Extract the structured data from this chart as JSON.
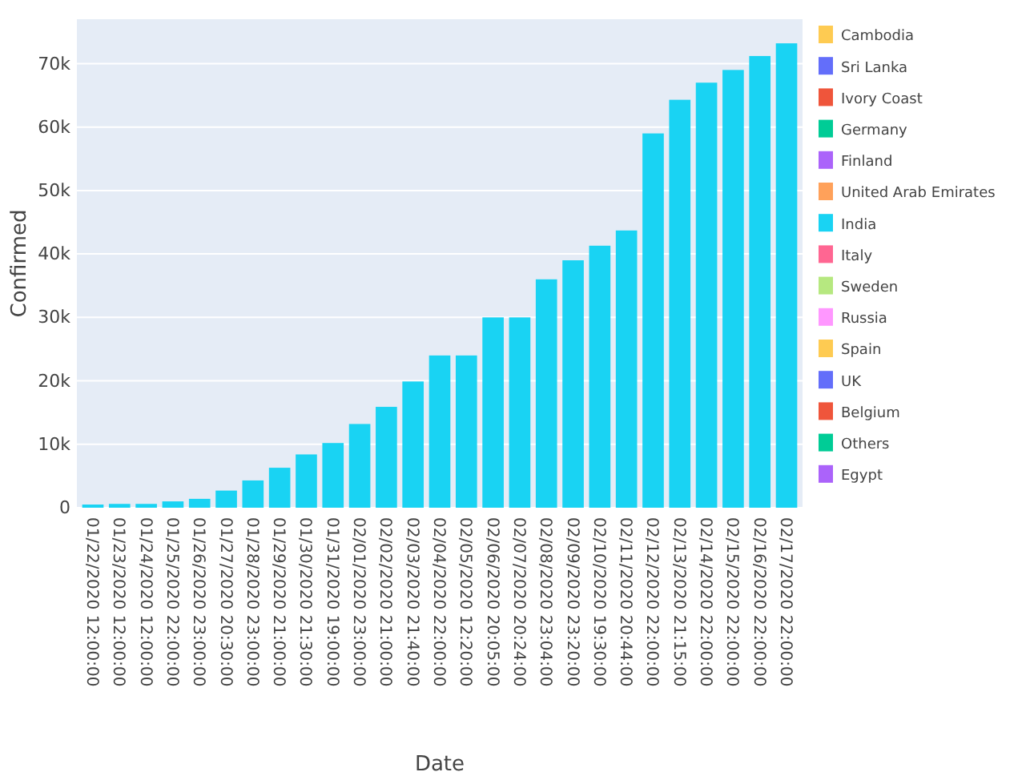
{
  "chart_data": {
    "type": "bar",
    "xlabel": "Date",
    "ylabel": "Confirmed",
    "categories": [
      "01/22/2020 12:00:00",
      "01/23/2020 12:00:00",
      "01/24/2020 12:00:00",
      "01/25/2020 22:00:00",
      "01/26/2020 23:00:00",
      "01/27/2020 20:30:00",
      "01/28/2020 23:00:00",
      "01/29/2020 21:00:00",
      "01/30/2020 21:30:00",
      "01/31/2020 19:00:00",
      "02/01/2020 23:00:00",
      "02/02/2020 21:00:00",
      "02/03/2020 21:40:00",
      "02/04/2020 22:00:00",
      "02/05/2020 12:20:00",
      "02/06/2020 20:05:00",
      "02/07/2020 20:24:00",
      "02/08/2020 23:04:00",
      "02/09/2020 23:20:00",
      "02/10/2020 19:30:00",
      "02/11/2020 20:44:00",
      "02/12/2020 22:00:00",
      "02/13/2020 21:15:00",
      "02/14/2020 22:00:00",
      "02/15/2020 22:00:00",
      "02/16/2020 22:00:00",
      "02/17/2020 22:00:00"
    ],
    "series": [
      {
        "color": "#19d3f3",
        "values": [
          500,
          600,
          600,
          1000,
          1400,
          2700,
          4300,
          6300,
          8400,
          10200,
          13200,
          15900,
          19900,
          24000,
          24000,
          30000,
          30000,
          36000,
          39000,
          41300,
          43700,
          59000,
          64300,
          67000,
          69000,
          71200,
          73200
        ]
      },
      {
        "name": "Cambodia",
        "color": "#fecb52",
        "values": [
          null,
          null,
          null,
          null,
          null,
          null,
          null,
          null,
          null,
          null,
          null,
          null,
          null,
          null,
          null,
          null,
          null,
          null,
          null,
          null,
          null,
          null,
          null,
          null,
          null,
          null,
          null
        ]
      },
      {
        "name": "Sri Lanka",
        "color": "#636efa",
        "values": [
          null,
          null,
          null,
          null,
          null,
          null,
          null,
          null,
          null,
          null,
          null,
          null,
          null,
          null,
          null,
          null,
          null,
          null,
          null,
          null,
          null,
          null,
          null,
          null,
          null,
          null,
          null
        ]
      },
      {
        "name": "Ivory Coast",
        "color": "#ef553b",
        "values": [
          null,
          null,
          null,
          null,
          null,
          null,
          null,
          null,
          null,
          null,
          null,
          null,
          null,
          null,
          null,
          null,
          null,
          null,
          null,
          null,
          null,
          null,
          null,
          null,
          null,
          null,
          null
        ]
      },
      {
        "name": "Germany",
        "color": "#00cc96",
        "values": [
          null,
          null,
          null,
          null,
          null,
          null,
          null,
          null,
          null,
          null,
          null,
          null,
          null,
          null,
          null,
          null,
          null,
          null,
          null,
          null,
          null,
          null,
          null,
          null,
          null,
          null,
          null
        ]
      },
      {
        "name": "Finland",
        "color": "#ab63fa",
        "values": [
          null,
          null,
          null,
          null,
          null,
          null,
          null,
          null,
          null,
          null,
          null,
          null,
          null,
          null,
          null,
          null,
          null,
          null,
          null,
          null,
          null,
          null,
          null,
          null,
          null,
          null,
          null
        ]
      },
      {
        "name": "United Arab Emirates",
        "color": "#ffa15a",
        "values": [
          null,
          null,
          null,
          null,
          null,
          null,
          null,
          null,
          null,
          null,
          null,
          null,
          null,
          null,
          null,
          null,
          null,
          null,
          null,
          null,
          null,
          null,
          null,
          null,
          null,
          null,
          null
        ]
      },
      {
        "name": "India",
        "color": "#19d3f3",
        "values": [
          null,
          null,
          null,
          null,
          null,
          null,
          null,
          null,
          null,
          null,
          null,
          null,
          null,
          null,
          null,
          null,
          null,
          null,
          null,
          null,
          null,
          null,
          null,
          null,
          null,
          null,
          null
        ]
      },
      {
        "name": "Italy",
        "color": "#ff6692",
        "values": [
          null,
          null,
          null,
          null,
          null,
          null,
          null,
          null,
          null,
          null,
          null,
          null,
          null,
          null,
          null,
          null,
          null,
          null,
          null,
          null,
          null,
          null,
          null,
          null,
          null,
          null,
          null
        ]
      },
      {
        "name": "Sweden",
        "color": "#b6e880",
        "values": [
          null,
          null,
          null,
          null,
          null,
          null,
          null,
          null,
          null,
          null,
          null,
          null,
          null,
          null,
          null,
          null,
          null,
          null,
          null,
          null,
          null,
          null,
          null,
          null,
          null,
          null,
          null
        ]
      },
      {
        "name": "Russia",
        "color": "#ff97ff",
        "values": [
          null,
          null,
          null,
          null,
          null,
          null,
          null,
          null,
          null,
          null,
          null,
          null,
          null,
          null,
          null,
          null,
          null,
          null,
          null,
          null,
          null,
          null,
          null,
          null,
          null,
          null,
          null
        ]
      },
      {
        "name": "Spain",
        "color": "#fecb52",
        "values": [
          null,
          null,
          null,
          null,
          null,
          null,
          null,
          null,
          null,
          null,
          null,
          null,
          null,
          null,
          null,
          null,
          null,
          null,
          null,
          null,
          null,
          null,
          null,
          null,
          null,
          null,
          null
        ]
      },
      {
        "name": "UK",
        "color": "#636efa",
        "values": [
          null,
          null,
          null,
          null,
          null,
          null,
          null,
          null,
          null,
          null,
          null,
          null,
          null,
          null,
          null,
          null,
          null,
          null,
          null,
          null,
          null,
          null,
          null,
          null,
          null,
          null,
          null
        ]
      },
      {
        "name": "Belgium",
        "color": "#ef553b",
        "values": [
          null,
          null,
          null,
          null,
          null,
          null,
          null,
          null,
          null,
          null,
          null,
          null,
          null,
          null,
          null,
          null,
          null,
          null,
          null,
          null,
          null,
          null,
          null,
          null,
          null,
          null,
          null
        ]
      },
      {
        "name": "Others",
        "color": "#00cc96",
        "values": [
          null,
          null,
          null,
          null,
          null,
          null,
          null,
          null,
          null,
          null,
          null,
          null,
          null,
          null,
          null,
          null,
          null,
          null,
          null,
          null,
          null,
          null,
          null,
          null,
          null,
          null,
          null
        ]
      },
      {
        "name": "Egypt",
        "color": "#ab63fa",
        "values": [
          null,
          null,
          null,
          null,
          null,
          null,
          null,
          null,
          null,
          null,
          null,
          null,
          null,
          null,
          null,
          null,
          null,
          null,
          null,
          null,
          null,
          null,
          null,
          null,
          null,
          null,
          null
        ]
      }
    ],
    "ylim": [
      0,
      77000
    ],
    "yticks": [
      {
        "value": 0,
        "label": "0"
      },
      {
        "value": 10000,
        "label": "10k"
      },
      {
        "value": 20000,
        "label": "20k"
      },
      {
        "value": 30000,
        "label": "30k"
      },
      {
        "value": 40000,
        "label": "40k"
      },
      {
        "value": 50000,
        "label": "50k"
      },
      {
        "value": 60000,
        "label": "60k"
      },
      {
        "value": 70000,
        "label": "70k"
      }
    ],
    "grid": "y",
    "legend": "right"
  }
}
